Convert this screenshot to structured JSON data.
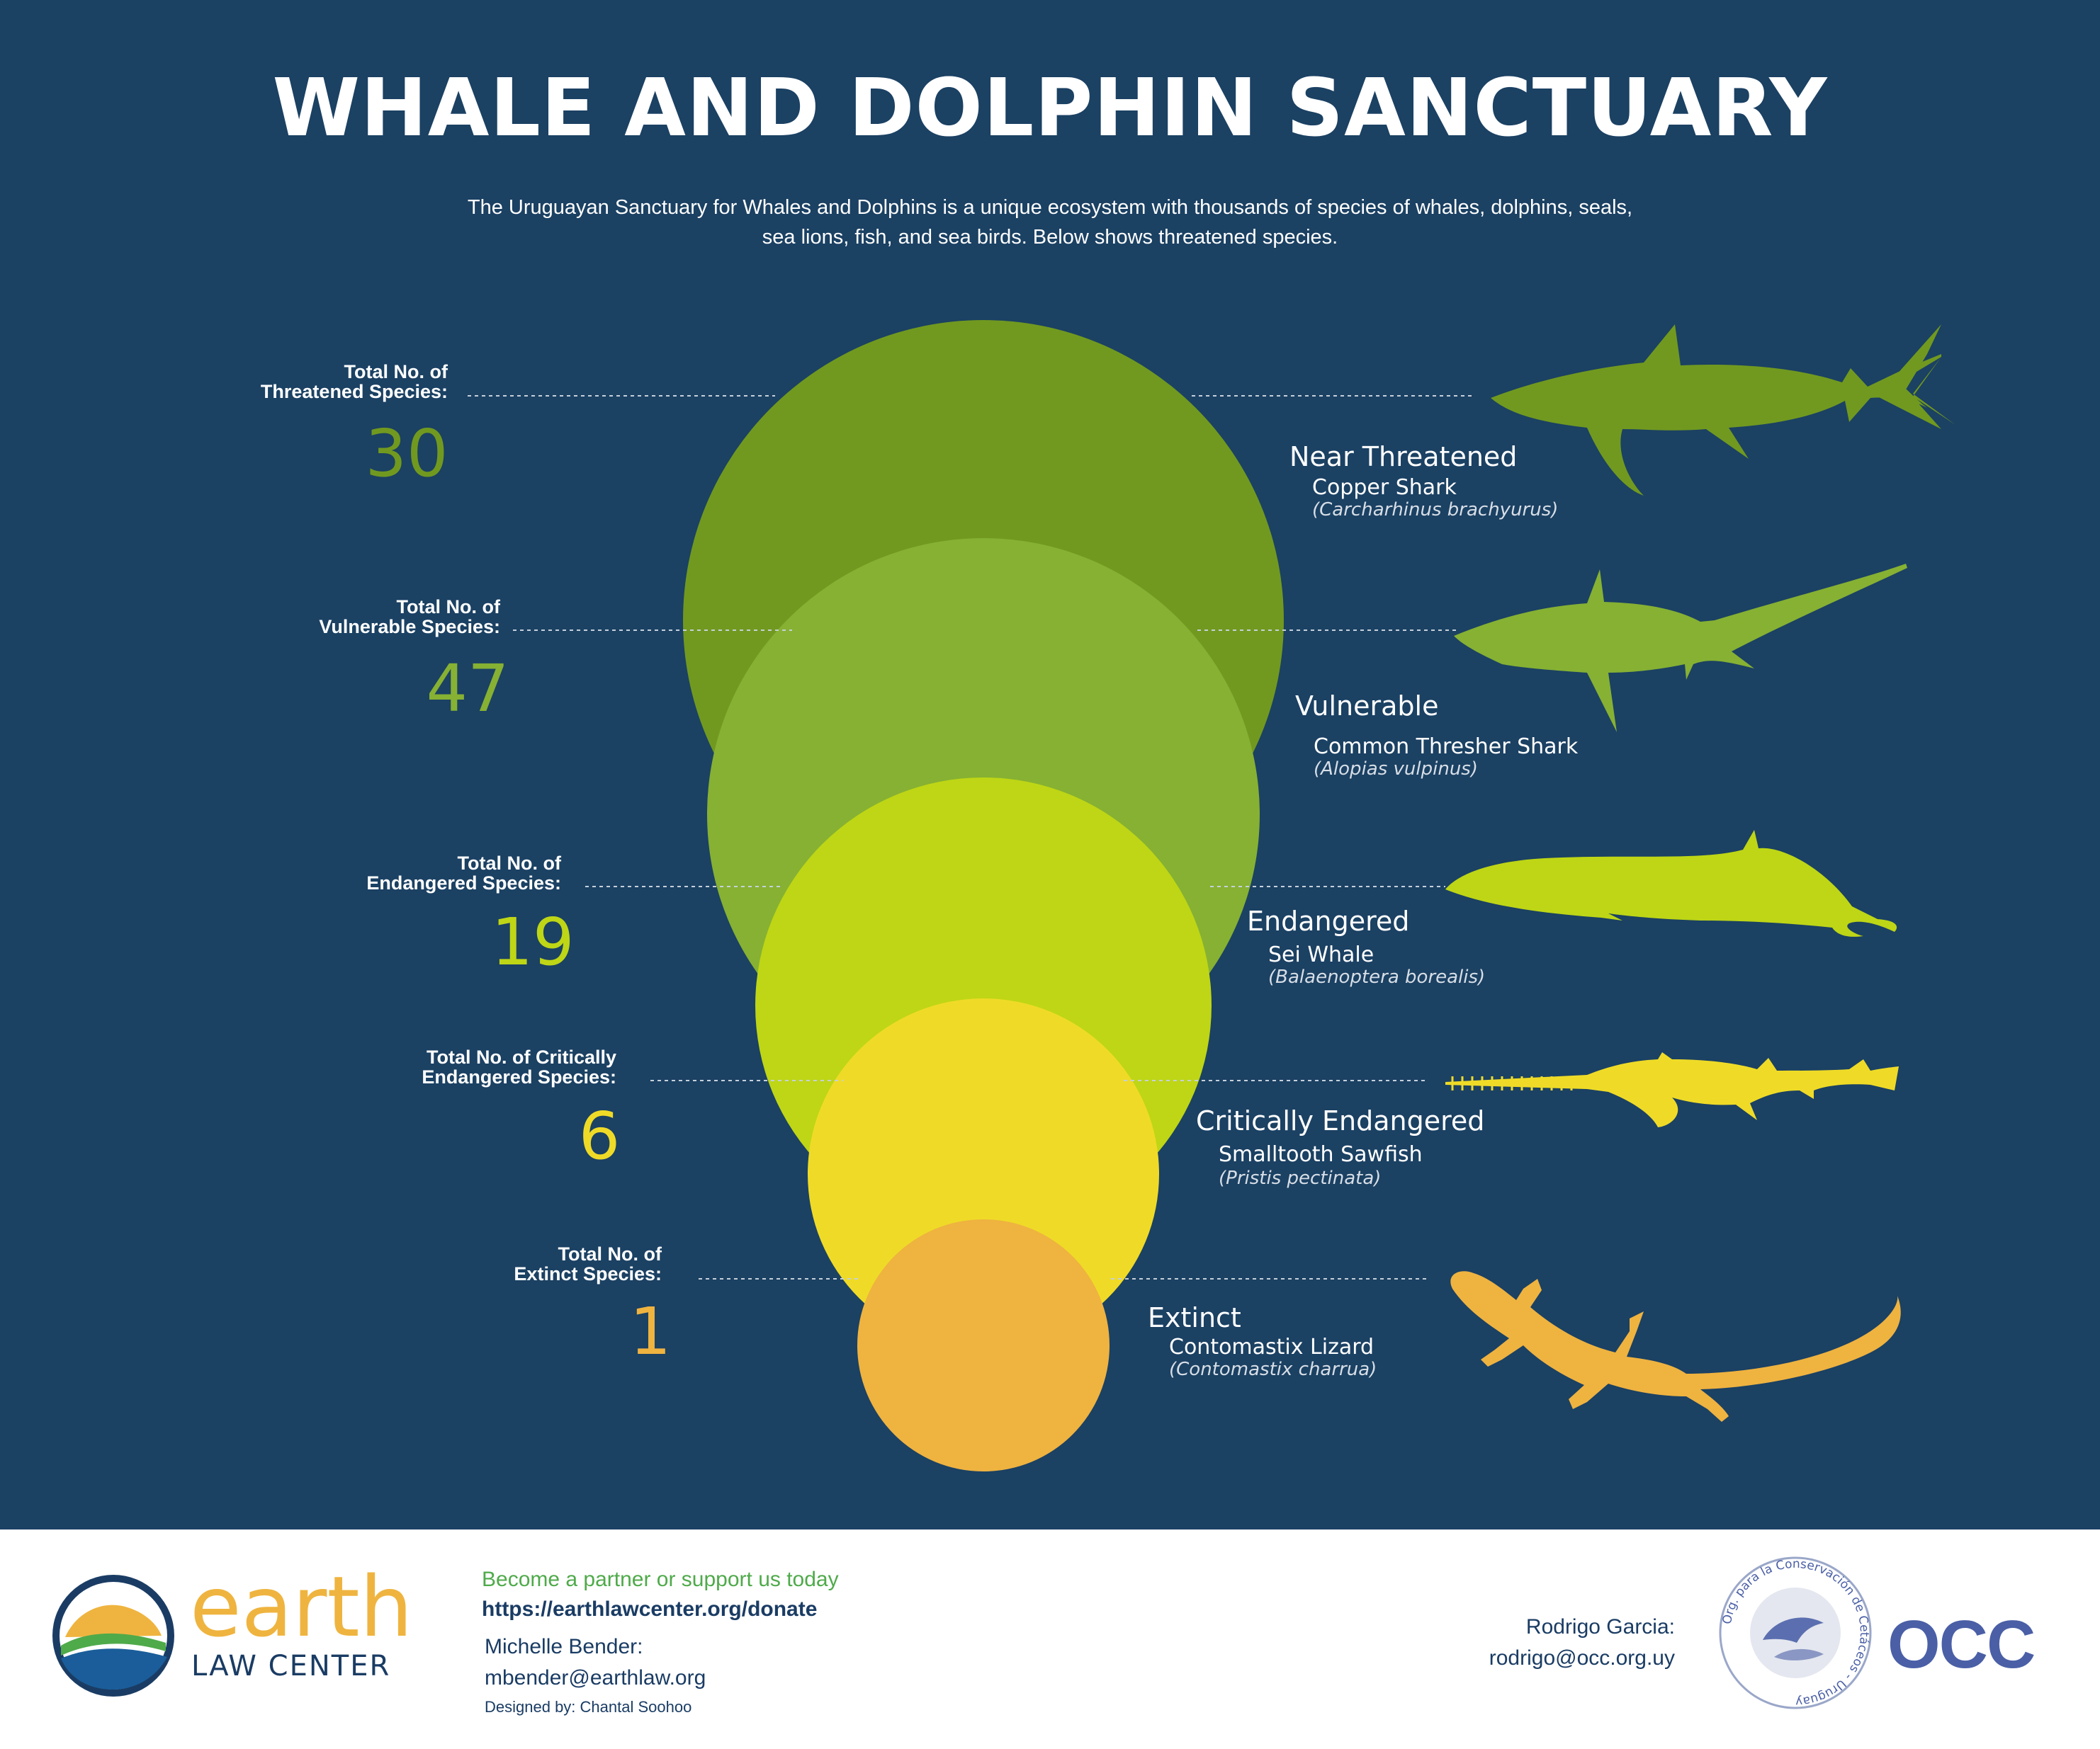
{
  "header": {
    "title": "WHALE AND DOLPHIN SANCTUARY",
    "intro_line1": "The Uruguayan Sanctuary for Whales and Dolphins is a unique ecosystem with thousands of species of whales, dolphins, seals,",
    "intro_line2": "sea lions, fish, and sea birds. Below shows threatened species."
  },
  "chart_data": {
    "type": "bubble",
    "title": "WHALE AND DOLPHIN SANCTUARY",
    "series": [
      {
        "label_line1": "Total No. of",
        "label_line2": "Threatened Species:",
        "value": 30,
        "display_value": "30",
        "category": "Near Threatened",
        "species": "Copper Shark",
        "scientific": "(Carcharhinus brachyurus)",
        "color": "#71991f",
        "icon": "shark-icon"
      },
      {
        "label_line1": "Total No. of",
        "label_line2": "Vulnerable Species:",
        "value": 47,
        "display_value": "47",
        "category": "Vulnerable",
        "species": "Common Thresher Shark",
        "scientific": "(Alopias vulpinus)",
        "color": "#86b133",
        "icon": "thresher-shark-icon"
      },
      {
        "label_line1": "Total No. of",
        "label_line2": "Endangered Species:",
        "value": 19,
        "display_value": "19",
        "category": "Endangered",
        "species": "Sei Whale",
        "scientific": "(Balaenoptera borealis)",
        "color": "#bed615",
        "icon": "whale-icon"
      },
      {
        "label_line1": "Total No. of Critically",
        "label_line2": "Endangered Species:",
        "value": 6,
        "display_value": "6",
        "category": "Critically Endangered",
        "species": "Smalltooth Sawfish",
        "scientific": "(Pristis pectinata)",
        "color": "#efdb27",
        "icon": "sawfish-icon"
      },
      {
        "label_line1": "Total No. of",
        "label_line2": "Extinct Species:",
        "value": 1,
        "display_value": "1",
        "category": "Extinct",
        "species": "Contomastix Lizard",
        "scientific": "(Contomastix charrua)",
        "color": "#efb340",
        "icon": "lizard-icon"
      }
    ]
  },
  "footer": {
    "logo_word": "earth",
    "logo_sub": "LAW CENTER",
    "cta": "Become a partner or support us today",
    "url": "https://earthlawcenter.org/donate",
    "contact_name": "Michelle Bender:",
    "contact_email": "mbender@earthlaw.org",
    "designer": "Designed by: Chantal Soohoo",
    "partner_name": "Rodrigo Garcia:",
    "partner_email": "rodrigo@occ.org.uy",
    "partner_logo": "OCC",
    "seal_text": "Org. para la Conservación de Cetáceos - Uruguay"
  },
  "colors": {
    "background": "#1b4163",
    "navy": "#1a3c64",
    "accent_green": "#4faa4a",
    "accent_orange": "#efb43f",
    "occ_blue": "#4a5fa6"
  }
}
